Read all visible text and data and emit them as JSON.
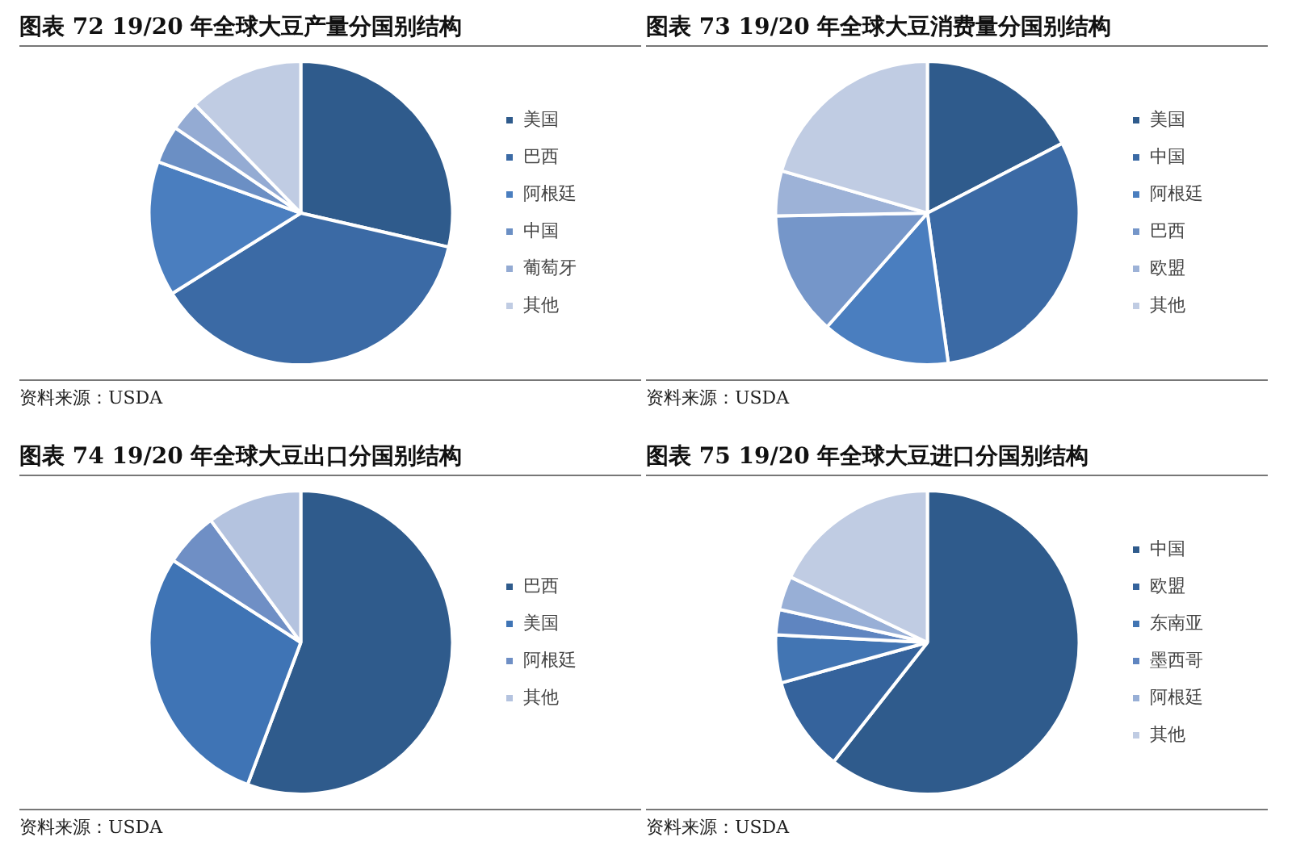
{
  "chart_data": [
    {
      "type": "pie",
      "title": "图表 72 19/20 年全球大豆产量分国别结构",
      "categories": [
        "美国",
        "巴西",
        "阿根廷",
        "中国",
        "葡萄牙",
        "其他"
      ],
      "values": [
        28.6,
        37.5,
        14.4,
        4.0,
        3.2,
        12.3
      ],
      "colors": [
        "#2f5b8c",
        "#3b6aa5",
        "#4a7ebf",
        "#6b8fc4",
        "#94abd3",
        "#c0cce3"
      ],
      "legend": "right",
      "annotations": [
        "资料来源：USDA"
      ]
    },
    {
      "type": "pie",
      "title": "图表 73 19/20 年全球大豆消费量分国别结构",
      "categories": [
        "美国",
        "中国",
        "阿根廷",
        "巴西",
        "欧盟",
        "其他"
      ],
      "values": [
        17.4,
        30.4,
        13.7,
        13.2,
        4.8,
        20.5
      ],
      "colors": [
        "#2f5b8c",
        "#3b6aa5",
        "#4a7ebf",
        "#7596c9",
        "#9db2d7",
        "#c0cce3"
      ],
      "legend": "right",
      "annotations": [
        "资料来源：USDA"
      ]
    },
    {
      "type": "pie",
      "title": "图表 74 19/20 年全球大豆出口分国别结构",
      "categories": [
        "巴西",
        "美国",
        "阿根廷",
        "其他"
      ],
      "values": [
        55.7,
        28.4,
        5.8,
        10.1
      ],
      "colors": [
        "#2f5b8c",
        "#3f74b5",
        "#6f8fc5",
        "#b4c3df"
      ],
      "legend": "right",
      "annotations": [
        "资料来源：USDA"
      ]
    },
    {
      "type": "pie",
      "title": "图表 75 19/20 年全球大豆进口分国别结构",
      "categories": [
        "中国",
        "欧盟",
        "东南亚",
        "墨西哥",
        "阿根廷",
        "其他"
      ],
      "values": [
        60.6,
        10.1,
        5.1,
        2.7,
        3.6,
        17.9
      ],
      "colors": [
        "#2f5b8c",
        "#35639c",
        "#4275b3",
        "#5f85c0",
        "#98afd6",
        "#c0cce3"
      ],
      "legend": "right",
      "annotations": [
        "资料来源：USDA"
      ]
    }
  ]
}
